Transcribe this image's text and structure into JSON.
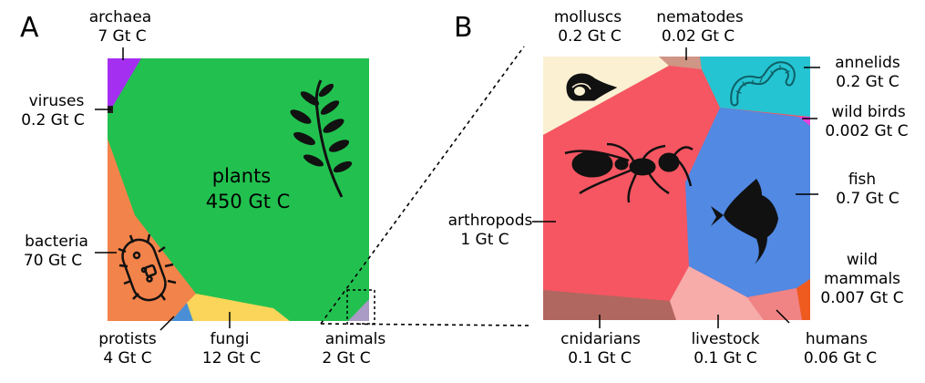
{
  "panel_a": {
    "letter": "A",
    "plants": {
      "name": "plants",
      "value": "450 Gt C",
      "color": "#22c14f"
    },
    "archaea": {
      "name": "archaea",
      "value": "7 Gt C",
      "color": "#a52ff0"
    },
    "viruses": {
      "name": "viruses",
      "value": "0.2 Gt C",
      "color": "#1d1d1d"
    },
    "bacteria": {
      "name": "bacteria",
      "value": "70 Gt C",
      "color": "#f2834a"
    },
    "protists": {
      "name": "protists",
      "value": "4 Gt C",
      "color": "#4a8fd6"
    },
    "fungi": {
      "name": "fungi",
      "value": "12 Gt C",
      "color": "#fbd45a"
    },
    "animals": {
      "name": "animals",
      "value": "2 Gt C",
      "color": "#a99bc5"
    }
  },
  "panel_b": {
    "letter": "B",
    "molluscs": {
      "name": "molluscs",
      "value": "0.2 Gt C",
      "color": "#fbf0d2"
    },
    "nematodes": {
      "name": "nematodes",
      "value": "0.02 Gt C",
      "color": "#cf9585"
    },
    "annelids": {
      "name": "annelids",
      "value": "0.2 Gt C",
      "color": "#25c4d2"
    },
    "wild_birds": {
      "name": "wild birds",
      "value": "0.002 Gt C",
      "color": "#e93edc"
    },
    "fish": {
      "name": "fish",
      "value": "0.7 Gt C",
      "color": "#5189e3"
    },
    "arthropods": {
      "name": "arthropods",
      "value": "1 Gt C",
      "color": "#f55662"
    },
    "wild_mammals": {
      "name": "wild",
      "name2": "mammals",
      "value": "0.007 Gt C",
      "color": "#ef5a1f"
    },
    "cnidarians": {
      "name": "cnidarians",
      "value": "0.1 Gt C",
      "color": "#b0675f"
    },
    "livestock": {
      "name": "livestock",
      "value": "0.1 Gt C",
      "color": "#f7acaa"
    },
    "humans": {
      "name": "humans",
      "value": "0.06 Gt C",
      "color": "#f08484"
    }
  },
  "icons": [
    "leaf-branch-icon",
    "bacterium-icon",
    "snail-shell-icon",
    "worm-icon",
    "ant-icon",
    "angelfish-icon"
  ]
}
